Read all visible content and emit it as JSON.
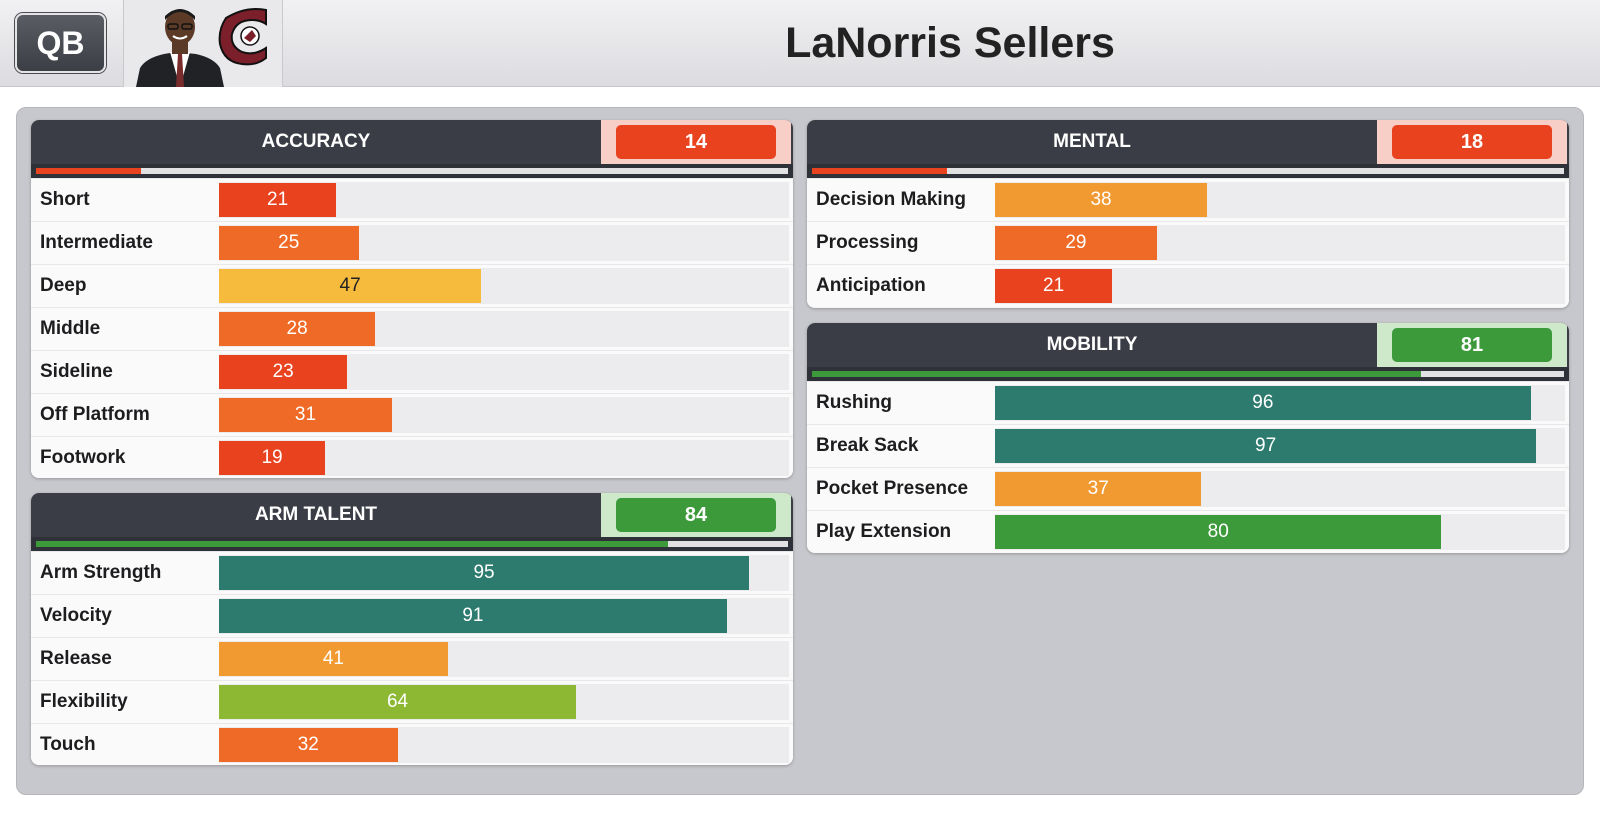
{
  "header": {
    "position": "QB",
    "player_name": "LaNorris Sellers"
  },
  "colors": {
    "red": "#e8421f",
    "deep_orange": "#ef6a26",
    "orange": "#f29a32",
    "yellow": "#f6bb3c",
    "lime": "#8db834",
    "green": "#3c9a3a",
    "teal": "#2d7b6e",
    "red_bg": "#f8cfc7",
    "green_bg": "#cde9c9"
  },
  "cards": {
    "accuracy": {
      "title": "ACCURACY",
      "score": 14,
      "rows": [
        {
          "label": "Short",
          "value": 21
        },
        {
          "label": "Intermediate",
          "value": 25
        },
        {
          "label": "Deep",
          "value": 47
        },
        {
          "label": "Middle",
          "value": 28
        },
        {
          "label": "Sideline",
          "value": 23
        },
        {
          "label": "Off Platform",
          "value": 31
        },
        {
          "label": "Footwork",
          "value": 19
        }
      ]
    },
    "arm_talent": {
      "title": "ARM TALENT",
      "score": 84,
      "rows": [
        {
          "label": "Arm Strength",
          "value": 95
        },
        {
          "label": "Velocity",
          "value": 91
        },
        {
          "label": "Release",
          "value": 41
        },
        {
          "label": "Flexibility",
          "value": 64
        },
        {
          "label": "Touch",
          "value": 32
        }
      ]
    },
    "mental": {
      "title": "MENTAL",
      "score": 18,
      "rows": [
        {
          "label": "Decision Making",
          "value": 38
        },
        {
          "label": "Processing",
          "value": 29
        },
        {
          "label": "Anticipation",
          "value": 21
        }
      ]
    },
    "mobility": {
      "title": "MOBILITY",
      "score": 81,
      "rows": [
        {
          "label": "Rushing",
          "value": 96
        },
        {
          "label": "Break Sack",
          "value": 97
        },
        {
          "label": "Pocket Presence",
          "value": 37
        },
        {
          "label": "Play Extension",
          "value": 80
        }
      ]
    }
  }
}
